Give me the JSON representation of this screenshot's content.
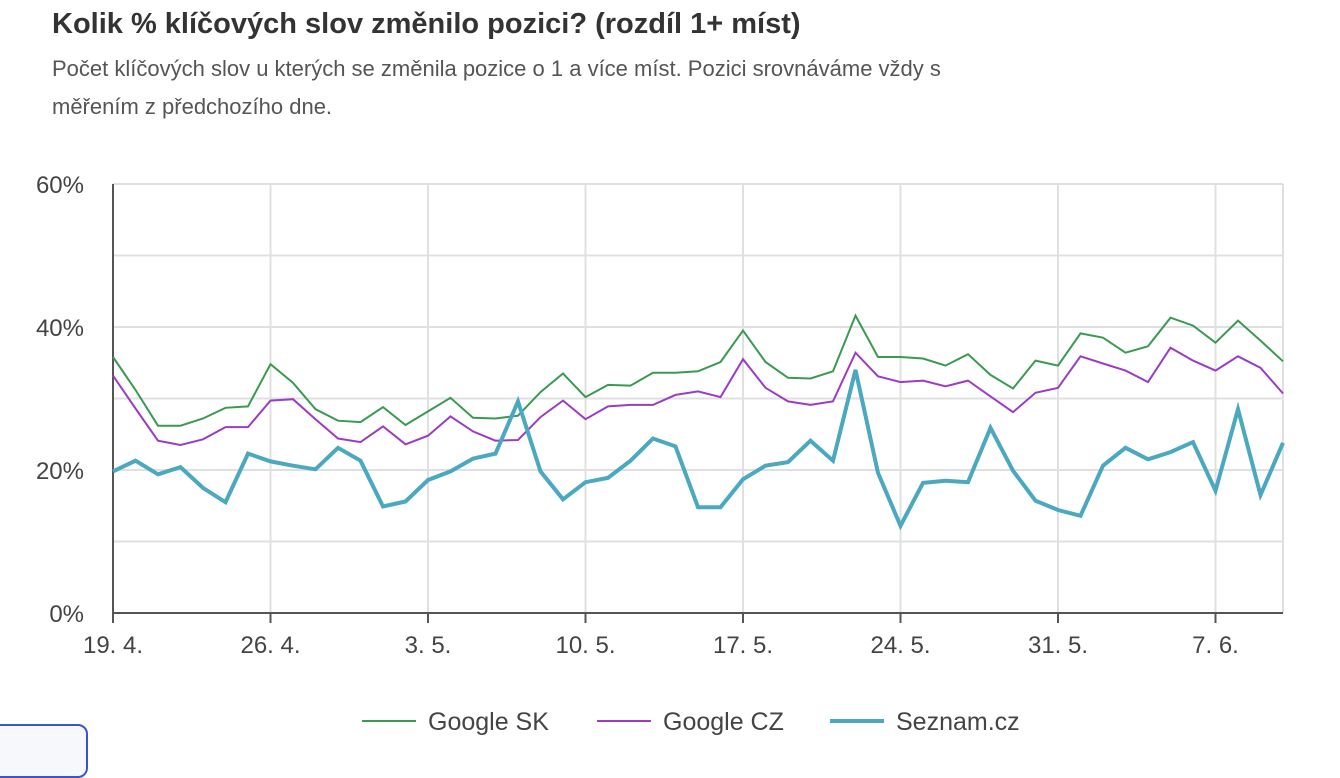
{
  "chart_data": {
    "type": "line",
    "title": "Kolik % klíčových slov změnilo pozici? (rozdíl 1+ míst)",
    "subtitle": "Počet klíčových slov u kterých se změnila pozice o 1 a více míst. Pozici srovnáváme vždy s měřením z předchozího dne.",
    "xlabel": "",
    "ylabel": "",
    "ylim": [
      0,
      60
    ],
    "y_ticks": [
      "0%",
      "20%",
      "40%",
      "60%"
    ],
    "x_ticks": [
      {
        "label": "19. 4.",
        "index": 0
      },
      {
        "label": "26. 4.",
        "index": 7
      },
      {
        "label": "3. 5.",
        "index": 14
      },
      {
        "label": "10. 5.",
        "index": 21
      },
      {
        "label": "17. 5.",
        "index": 28
      },
      {
        "label": "24. 5.",
        "index": 35
      },
      {
        "label": "31. 5.",
        "index": 42
      },
      {
        "label": "7. 6.",
        "index": 49
      }
    ],
    "x_count": 53,
    "grid": true,
    "legend_position": "bottom",
    "series": [
      {
        "name": "Google SK",
        "color": "#3a9a52",
        "style": "thin",
        "values": [
          35.8,
          31.2,
          26.2,
          26.2,
          27.2,
          28.7,
          28.9,
          34.8,
          32.2,
          28.5,
          26.9,
          26.7,
          28.8,
          26.3,
          28.2,
          30.1,
          27.3,
          27.2,
          27.6,
          30.9,
          33.5,
          30.2,
          31.9,
          31.8,
          33.6,
          33.6,
          33.8,
          35.1,
          39.5,
          35.1,
          32.9,
          32.8,
          33.8,
          41.6,
          35.8,
          35.8,
          35.6,
          34.6,
          36.2,
          33.3,
          31.4,
          35.3,
          34.6,
          39.1,
          38.5,
          36.4,
          37.3,
          41.3,
          40.2,
          37.8,
          40.9,
          38.1,
          35.2
        ]
      },
      {
        "name": "Google CZ",
        "color": "#9c3cc4",
        "style": "thin",
        "values": [
          33.2,
          28.6,
          24.1,
          23.5,
          24.3,
          26.0,
          26.0,
          29.7,
          29.9,
          27.1,
          24.4,
          23.9,
          26.1,
          23.6,
          24.8,
          27.5,
          25.4,
          24.1,
          24.2,
          27.4,
          29.7,
          27.1,
          28.9,
          29.1,
          29.1,
          30.5,
          31.0,
          30.2,
          35.5,
          31.5,
          29.6,
          29.1,
          29.6,
          36.4,
          33.1,
          32.3,
          32.5,
          31.7,
          32.5,
          30.3,
          28.1,
          30.8,
          31.5,
          35.9,
          34.9,
          33.9,
          32.3,
          37.1,
          35.3,
          33.9,
          35.9,
          34.3,
          30.7
        ]
      },
      {
        "name": "Seznam.cz",
        "color": "#4aa8c0",
        "style": "thick",
        "values": [
          19.8,
          21.3,
          19.4,
          20.4,
          17.5,
          15.5,
          22.3,
          21.2,
          20.6,
          20.1,
          23.1,
          21.3,
          14.9,
          15.6,
          18.6,
          19.8,
          21.6,
          22.3,
          29.6,
          19.8,
          15.9,
          18.3,
          18.9,
          21.3,
          24.4,
          23.3,
          14.8,
          14.8,
          18.7,
          20.6,
          21.1,
          24.1,
          21.3,
          34.0,
          19.6,
          12.2,
          18.2,
          18.5,
          18.3,
          25.9,
          19.9,
          15.7,
          14.4,
          13.6,
          20.6,
          23.1,
          21.5,
          22.5,
          23.9,
          17.1,
          28.5,
          16.5,
          23.8
        ]
      }
    ]
  }
}
